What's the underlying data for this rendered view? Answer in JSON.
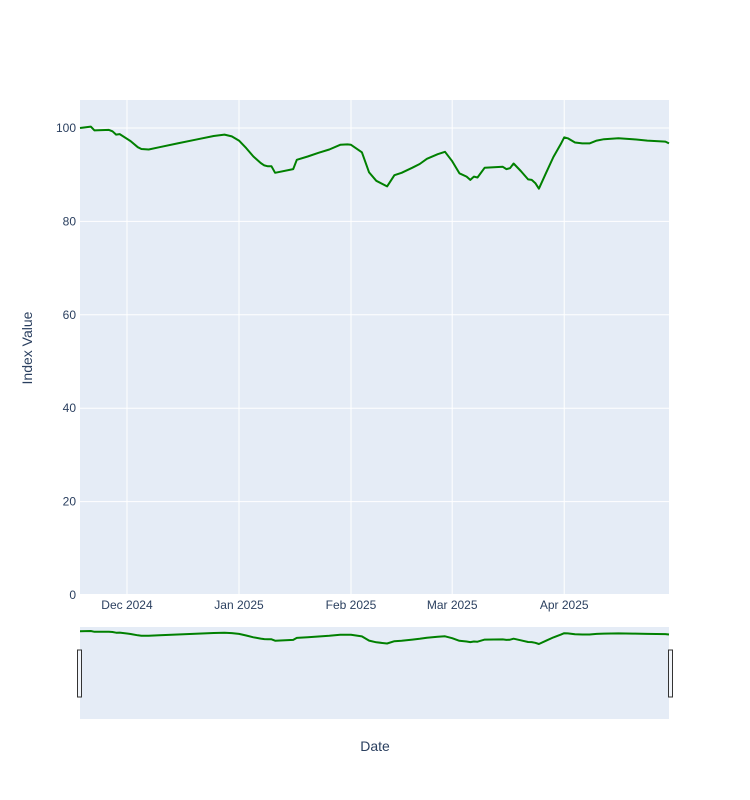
{
  "chart_data": {
    "type": "line",
    "title": "",
    "xlabel": "Date",
    "ylabel": "Index Value",
    "ylim": [
      0,
      106
    ],
    "xlim": [
      "2024-11-18",
      "2025-04-30"
    ],
    "x_ticks": [
      {
        "date": "2024-12-01",
        "label": "Dec 2024"
      },
      {
        "date": "2025-01-01",
        "label": "Jan 2025"
      },
      {
        "date": "2025-02-01",
        "label": "Feb 2025"
      },
      {
        "date": "2025-03-01",
        "label": "Mar 2025"
      },
      {
        "date": "2025-04-01",
        "label": "Apr 2025"
      }
    ],
    "y_ticks": [
      0,
      20,
      40,
      60,
      80,
      100
    ],
    "grid": true,
    "range_slider": true,
    "series": [
      {
        "name": "",
        "color": "#008000",
        "points": [
          [
            "2024-11-18",
            100.0
          ],
          [
            "2024-11-21",
            100.3
          ],
          [
            "2024-11-22",
            99.5
          ],
          [
            "2024-11-26",
            99.6
          ],
          [
            "2024-11-27",
            99.3
          ],
          [
            "2024-11-28",
            98.6
          ],
          [
            "2024-11-29",
            98.7
          ],
          [
            "2024-12-02",
            97.2
          ],
          [
            "2024-12-04",
            95.9
          ],
          [
            "2024-12-05",
            95.5
          ],
          [
            "2024-12-07",
            95.4
          ],
          [
            "2024-12-10",
            95.9
          ],
          [
            "2024-12-15",
            96.7
          ],
          [
            "2024-12-20",
            97.5
          ],
          [
            "2024-12-25",
            98.3
          ],
          [
            "2024-12-28",
            98.6
          ],
          [
            "2024-12-30",
            98.2
          ],
          [
            "2025-01-01",
            97.3
          ],
          [
            "2025-01-03",
            95.7
          ],
          [
            "2025-01-05",
            93.9
          ],
          [
            "2025-01-07",
            92.5
          ],
          [
            "2025-01-08",
            92.0
          ],
          [
            "2025-01-09",
            91.8
          ],
          [
            "2025-01-10",
            91.8
          ],
          [
            "2025-01-11",
            90.4
          ],
          [
            "2025-01-16",
            91.2
          ],
          [
            "2025-01-17",
            93.2
          ],
          [
            "2025-01-20",
            93.9
          ],
          [
            "2025-01-23",
            94.7
          ],
          [
            "2025-01-26",
            95.4
          ],
          [
            "2025-01-29",
            96.4
          ],
          [
            "2025-01-31",
            96.5
          ],
          [
            "2025-02-01",
            96.4
          ],
          [
            "2025-02-04",
            94.8
          ],
          [
            "2025-02-06",
            90.5
          ],
          [
            "2025-02-08",
            88.7
          ],
          [
            "2025-02-11",
            87.5
          ],
          [
            "2025-02-13",
            89.9
          ],
          [
            "2025-02-15",
            90.4
          ],
          [
            "2025-02-18",
            91.5
          ],
          [
            "2025-02-20",
            92.3
          ],
          [
            "2025-02-22",
            93.4
          ],
          [
            "2025-02-25",
            94.4
          ],
          [
            "2025-02-27",
            94.9
          ],
          [
            "2025-03-01",
            92.9
          ],
          [
            "2025-03-03",
            90.3
          ],
          [
            "2025-03-05",
            89.6
          ],
          [
            "2025-03-06",
            88.9
          ],
          [
            "2025-03-07",
            89.6
          ],
          [
            "2025-03-08",
            89.4
          ],
          [
            "2025-03-10",
            91.5
          ],
          [
            "2025-03-15",
            91.7
          ],
          [
            "2025-03-16",
            91.2
          ],
          [
            "2025-03-17",
            91.4
          ],
          [
            "2025-03-18",
            92.4
          ],
          [
            "2025-03-20",
            90.8
          ],
          [
            "2025-03-22",
            89.0
          ],
          [
            "2025-03-23",
            88.9
          ],
          [
            "2025-03-24",
            88.2
          ],
          [
            "2025-03-25",
            87.0
          ],
          [
            "2025-03-27",
            90.4
          ],
          [
            "2025-03-29",
            93.8
          ],
          [
            "2025-03-31",
            96.5
          ],
          [
            "2025-04-01",
            98.0
          ],
          [
            "2025-04-02",
            97.8
          ],
          [
            "2025-04-04",
            96.9
          ],
          [
            "2025-04-06",
            96.7
          ],
          [
            "2025-04-08",
            96.7
          ],
          [
            "2025-04-10",
            97.3
          ],
          [
            "2025-04-12",
            97.6
          ],
          [
            "2025-04-16",
            97.8
          ],
          [
            "2025-04-20",
            97.6
          ],
          [
            "2025-04-24",
            97.3
          ],
          [
            "2025-04-29",
            97.1
          ],
          [
            "2025-04-30",
            96.7
          ]
        ]
      }
    ]
  }
}
